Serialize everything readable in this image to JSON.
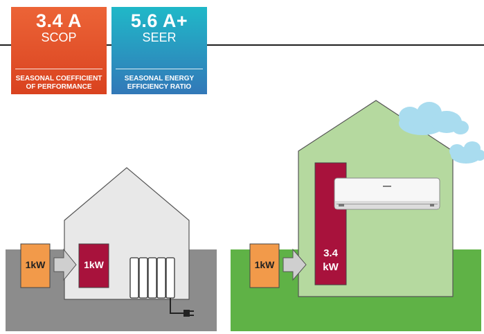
{
  "badges": {
    "scop": {
      "value": "3.4 A",
      "abbr": "SCOP",
      "desc_line1": "SEASONAL COEFFICIENT",
      "desc_line2": "OF PERFORMANCE",
      "color": "#e8582b"
    },
    "seer": {
      "value": "5.6 A+",
      "abbr": "SEER",
      "desc_line1": "SEASONAL ENERGY",
      "desc_line2": "EFFICIENCY RATIO",
      "color": "#2a9cc4"
    }
  },
  "left_scene": {
    "input_label": "1kW",
    "output_label": "1kW",
    "ground_color": "#8c8c8c",
    "house_color": "#e8e8e8"
  },
  "right_scene": {
    "input_label": "1kW",
    "output_label_line1": "3.4",
    "output_label_line2": "kW",
    "ground_color": "#5fb246",
    "house_color": "#b5d99f"
  },
  "colors": {
    "input_box": "#f29a4a",
    "output_box": "#a8123c",
    "arrow": "#cfcfcf",
    "cloud": "#a9dcef"
  }
}
